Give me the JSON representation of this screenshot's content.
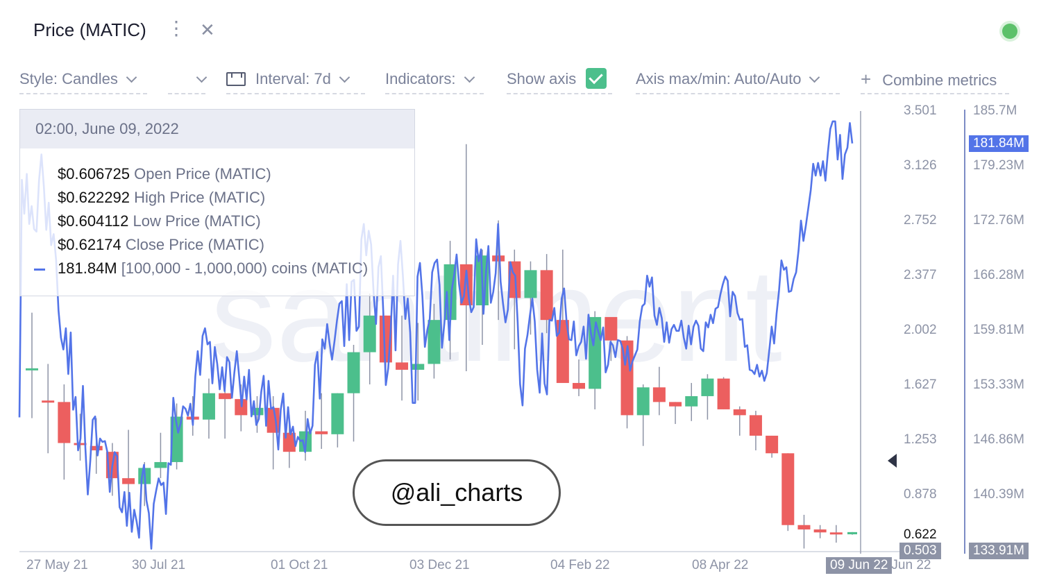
{
  "header": {
    "title": "Price (MATIC)",
    "menu_glyph": "⋮",
    "close_glyph": "✕",
    "status_color": "#5cc16a"
  },
  "toolbar": {
    "style_label": "Style: Candles",
    "interval_label": "Interval: 7d",
    "indicators_label": "Indicators:",
    "show_axis_label": "Show axis",
    "show_axis_checked": true,
    "axis_maxmin_label": "Axis max/min: Auto/Auto",
    "combine_plus": "+",
    "combine_label": "Combine metrics"
  },
  "tooltip": {
    "date": "02:00, June 09, 2022",
    "rows": [
      {
        "value": "$0.606725",
        "label": " Open Price (MATIC)"
      },
      {
        "value": "$0.622292",
        "label": " High Price (MATIC)"
      },
      {
        "value": "$0.604112",
        "label": " Low Price (MATIC)"
      },
      {
        "value": "$0.62174",
        "label": " Close Price (MATIC)"
      },
      {
        "value": "181.84M",
        "label": " [100,000  - 1,000,000) coins (MATIC)"
      }
    ]
  },
  "watermark": "santiment",
  "annotation": "@ali_charts",
  "crosshair": {
    "date_label": "09 Jun 22",
    "left_value": "0.622",
    "right_value": "181.84M"
  },
  "axis_last": {
    "left": "0.503",
    "right": "133.91M"
  },
  "chart_data": {
    "type": "candlestick",
    "colors": {
      "up": "#4cbf8c",
      "down": "#ec5f5f",
      "line": "#5374e8",
      "line_faded": "#c9d4f6"
    },
    "x_ticks": [
      "27 May 21",
      "30 Jul 21",
      "01 Oct 21",
      "03 Dec 21",
      "04 Feb 22",
      "08 Apr 22",
      "09 Jun 22"
    ],
    "left_axis": {
      "label": "Price (MATIC)",
      "ticks": [
        "3.501",
        "3.126",
        "2.752",
        "2.377",
        "2.002",
        "1.627",
        "1.253",
        "0.878"
      ],
      "range": [
        0.503,
        3.501
      ]
    },
    "right_axis": {
      "label": "[100,000 - 1,000,000) coins (MATIC)",
      "ticks": [
        "185.7M",
        "179.23M",
        "172.76M",
        "166.28M",
        "159.81M",
        "153.33M",
        "146.86M",
        "140.39M"
      ],
      "range": [
        133.91,
        185.7
      ]
    },
    "candles": [
      [
        1.74,
        2.12,
        1.4,
        1.74
      ],
      [
        1.52,
        1.77,
        1.16,
        1.51
      ],
      [
        1.51,
        1.63,
        0.98,
        1.23
      ],
      [
        1.23,
        1.43,
        1.11,
        1.22
      ],
      [
        1.21,
        1.4,
        1.02,
        1.18
      ],
      [
        1.17,
        1.23,
        0.87,
        0.99
      ],
      [
        0.99,
        1.32,
        0.82,
        0.95
      ],
      [
        0.95,
        1.1,
        0.8,
        1.06
      ],
      [
        1.06,
        1.3,
        0.99,
        1.1
      ],
      [
        1.1,
        1.5,
        1.05,
        1.41
      ],
      [
        1.41,
        1.55,
        1.28,
        1.39
      ],
      [
        1.39,
        1.67,
        1.26,
        1.57
      ],
      [
        1.57,
        1.65,
        1.26,
        1.53
      ],
      [
        1.53,
        1.63,
        1.31,
        1.42
      ],
      [
        1.42,
        1.55,
        1.3,
        1.47
      ],
      [
        1.47,
        1.55,
        1.05,
        1.3
      ],
      [
        1.3,
        1.42,
        1.06,
        1.17
      ],
      [
        1.17,
        1.45,
        1.11,
        1.31
      ],
      [
        1.31,
        1.57,
        1.19,
        1.29
      ],
      [
        1.29,
        1.57,
        1.2,
        1.57
      ],
      [
        1.57,
        1.9,
        1.24,
        1.85
      ],
      [
        1.85,
        2.25,
        1.63,
        2.1
      ],
      [
        2.1,
        2.1,
        1.69,
        1.78
      ],
      [
        1.78,
        2.1,
        1.52,
        1.73
      ],
      [
        1.73,
        2.05,
        1.52,
        1.77
      ],
      [
        1.77,
        2.18,
        1.67,
        2.07
      ],
      [
        2.07,
        2.61,
        1.8,
        2.45
      ],
      [
        2.45,
        3.27,
        1.72,
        2.17
      ],
      [
        2.17,
        2.55,
        1.9,
        2.51
      ],
      [
        2.51,
        2.75,
        2.07,
        2.47
      ],
      [
        2.47,
        2.55,
        1.87,
        2.22
      ],
      [
        2.22,
        2.47,
        1.97,
        2.41
      ],
      [
        2.41,
        2.52,
        1.98,
        2.07
      ],
      [
        2.07,
        2.55,
        1.65,
        1.64
      ],
      [
        1.64,
        1.8,
        1.55,
        1.6
      ],
      [
        1.6,
        2.13,
        1.46,
        2.09
      ],
      [
        2.09,
        2.08,
        1.79,
        1.93
      ],
      [
        1.93,
        1.96,
        1.33,
        1.42
      ],
      [
        1.42,
        1.63,
        1.21,
        1.61
      ],
      [
        1.61,
        1.75,
        1.42,
        1.51
      ],
      [
        1.51,
        1.51,
        1.36,
        1.48
      ],
      [
        1.48,
        1.64,
        1.38,
        1.55
      ],
      [
        1.55,
        1.7,
        1.39,
        1.67
      ],
      [
        1.67,
        1.68,
        1.46,
        1.46
      ],
      [
        1.46,
        1.48,
        1.28,
        1.42
      ],
      [
        1.42,
        1.45,
        1.18,
        1.28
      ],
      [
        1.28,
        1.28,
        1.13,
        1.16
      ],
      [
        1.16,
        1.16,
        0.63,
        0.67
      ],
      [
        0.67,
        0.74,
        0.51,
        0.64
      ],
      [
        0.64,
        0.67,
        0.58,
        0.62
      ],
      [
        0.62,
        0.67,
        0.55,
        0.61
      ],
      [
        0.607,
        0.622,
        0.604,
        0.622
      ]
    ],
    "holders_series": [
      149.5,
      177.5,
      173.5,
      178.2,
      172.3,
      174.4,
      171.7,
      171.4,
      177.4,
      180.5,
      176.7,
      171.6,
      174.8,
      169.8,
      171.1,
      168.1,
      162.1,
      158.9,
      157.5,
      160.0,
      154.6,
      159.5,
      150.4,
      151.9,
      145.6,
      147.0,
      153.2,
      145.9,
      140.4,
      144.4,
      149.2,
      149.6,
      145.0,
      147.0,
      146.6,
      146.7,
      145.4,
      140.7,
      143.7,
      145.4,
      144.9,
      138.9,
      138.3,
      140.7,
      136.7,
      140.6,
      136.0,
      138.6,
      137.2,
      135.3,
      142.2,
      143.9,
      139.7,
      138.2,
      134.0,
      139.3,
      140.9,
      142.3,
      141.5,
      141.8,
      138.1,
      144.1,
      143.9,
      151.8,
      149.3,
      147.7,
      148.8,
      150.8,
      150.5,
      149.7,
      151.1,
      148.6,
      154.3,
      157.3,
      154.5,
      159.1,
      160.0,
      158.1,
      158.4,
      153.5,
      157.8,
      155.8,
      152.8,
      155.4,
      152.6,
      156.6,
      156.0,
      151.8,
      154.8,
      157.3,
      154.2,
      150.8,
      154.3,
      151.6,
      155.1,
      149.6,
      151.4,
      148.6,
      149.3,
      152.5,
      154.4,
      148.5,
      153.8,
      150.5,
      150.7,
      149.0,
      145.7,
      150.4,
      152.3,
      147.1,
      150.7,
      147.5,
      148.4,
      146.1,
      147.2,
      146.7,
      146.8,
      145.4,
      149.3,
      147.6,
      148.5,
      155.7,
      157.2,
      151.7,
      158.7,
      157.6,
      160.5,
      158.2,
      156.3,
      158.5,
      160.9,
      162.9,
      163.2,
      157.9,
      165.2,
      158.6,
      165.5,
      165.7,
      159.7,
      160.2,
      170.5,
      172.3,
      168.6,
      171.5,
      169.9,
      164.2,
      160.5,
      167.2,
      168.5,
      161.8,
      153.3,
      155.3,
      159.7,
      166.2,
      157.4,
      167.5,
      170.3,
      166.2,
      161.1,
      163.5,
      159.5,
      151.2,
      151.2,
      166.1,
      167.7,
      163.8,
      157.8,
      159.8,
      161.1,
      166.6,
      167.7,
      168.1,
      165.1,
      157.7,
      160.6,
      164.3,
      158.6,
      164.5,
      166.3,
      168.7,
      165.2,
      163.0,
      163.8,
      166.8,
      163.6,
      161.9,
      162.5,
      170.5,
      167.9,
      169.3,
      161.7,
      166.5,
      169.7,
      163.0,
      164.3,
      166.5,
      172.3,
      165.5,
      162.9,
      160.7,
      162.2,
      167.8,
      166.6,
      166.2,
      160.7,
      153.4,
      150.9,
      157.6,
      159.2,
      161.5,
      163.5,
      160.8,
      155.1,
      152.4,
      159.4,
      153.5,
      152.2,
      161.0,
      160.9,
      162.4,
      159.1,
      159.5,
      163.5,
      164.7,
      160.8,
      158.7,
      158.6,
      160.8,
      156.8,
      157.9,
      158.4,
      160.2,
      156.4,
      161.6,
      159.4,
      158.0,
      160.7,
      159.6,
      158.6,
      160.1,
      154.8,
      155.7,
      158.4,
      158.0,
      156.6,
      158.6,
      158.5,
      157.6,
      155.7,
      157.9,
      155.0,
      156.1,
      156.8,
      157.5,
      160.8,
      162.6,
      162.9,
      166.2,
      164.9,
      166.0,
      161.5,
      160.4,
      162.4,
      161.2,
      158.4,
      160.7,
      158.3,
      159.9,
      160.4,
      159.7,
      159.7,
      160.9,
      158.9,
      157.6,
      160.3,
      158.1,
      160.2,
      160.9,
      160.3,
      157.6,
      157.3,
      160.7,
      160.1,
      161.6,
      160.6,
      162.3,
      162.5,
      164.0,
      165.2,
      166.1,
      165.6,
      161.4,
      164.3,
      163.8,
      161.8,
      161.0,
      161.1,
      157.8,
      158.0,
      155.1,
      155.0,
      154.6,
      155.7,
      154.3,
      155.0,
      153.8,
      154.7,
      157.4,
      160.2,
      158.2,
      161.7,
      164.4,
      168.0,
      166.9,
      167.2,
      164.3,
      164.4,
      165.8,
      166.6,
      169.2,
      172.7,
      170.3,
      172.1,
      174.2,
      176.3,
      179.4,
      178.0,
      179.5,
      178.0,
      179.7,
      177.4,
      180.7,
      183.5,
      184.4,
      184.4,
      179.9,
      182.8,
      177.6,
      180.5,
      181.3,
      184.2,
      181.8
    ]
  }
}
